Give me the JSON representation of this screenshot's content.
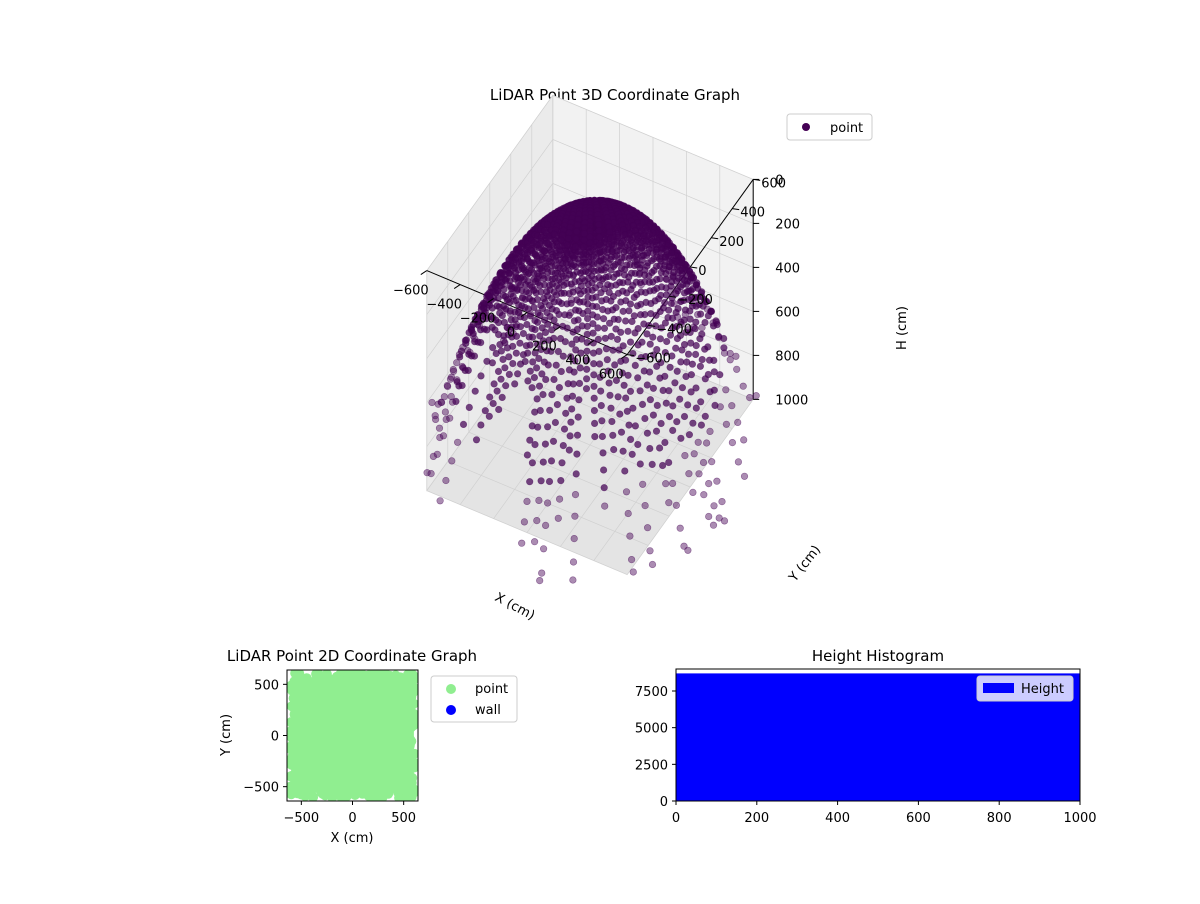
{
  "figure": {
    "colors": {
      "point3d": "#440154",
      "point2d": "#90ee90",
      "wall": "#0000ff",
      "histogram": "#0000ff"
    }
  },
  "chart_data": [
    {
      "type": "scatter",
      "projection": "3d",
      "title": "LiDAR Point 3D Coordinate Graph",
      "xlabel": "X (cm)",
      "ylabel": "Y (cm)",
      "zlabel": "H (cm)",
      "xlim": [
        -600,
        600
      ],
      "ylim": [
        -600,
        600
      ],
      "zlim": [
        0,
        1000
      ],
      "z_inverted": true,
      "x_ticks": [
        "−600",
        "−400",
        "−200",
        "0",
        "200",
        "400",
        "600"
      ],
      "y_ticks": [
        "−600",
        "−400",
        "−200",
        "0",
        "200",
        "400",
        "600"
      ],
      "z_ticks": [
        "0",
        "200",
        "400",
        "600",
        "800",
        "1000"
      ],
      "grid": true,
      "legend": {
        "placement": "top-right",
        "entries": [
          "point"
        ]
      },
      "series": [
        {
          "name": "point",
          "color": "#440154",
          "pattern": "radial rays of points from the origin; height (H) grows with horizontal distance; dense cluster near center",
          "ray_count": 90,
          "points_per_ray": 26,
          "r_max": 860,
          "h_max": 1000,
          "sample_points": [
            {
              "x": 0,
              "y": 0,
              "h": 0
            },
            {
              "x": 300,
              "y": 0,
              "h": 120
            },
            {
              "x": 600,
              "y": 0,
              "h": 500
            },
            {
              "x": 0,
              "y": 600,
              "h": 500
            },
            {
              "x": -600,
              "y": 0,
              "h": 500
            },
            {
              "x": 0,
              "y": -600,
              "h": 500
            },
            {
              "x": 600,
              "y": 600,
              "h": 1000
            }
          ]
        }
      ]
    },
    {
      "type": "scatter",
      "title": "LiDAR Point 2D Coordinate Graph",
      "xlabel": "X (cm)",
      "ylabel": "Y (cm)",
      "xlim": [
        -640,
        640
      ],
      "ylim": [
        -640,
        640
      ],
      "x_ticks": [
        -500,
        0,
        500
      ],
      "y_ticks": [
        -500,
        0,
        500
      ],
      "legend": {
        "placement": "outside-right",
        "entries": [
          "point",
          "wall"
        ]
      },
      "series": [
        {
          "name": "point",
          "color": "#90ee90",
          "coverage": "nearly fills [-600,600] x [-600,600]"
        },
        {
          "name": "wall",
          "color": "#0000ff",
          "values": []
        }
      ]
    },
    {
      "type": "bar",
      "title": "Height Histogram",
      "xlabel": "",
      "ylabel": "",
      "xlim": [
        0,
        1000
      ],
      "ylim": [
        0,
        9000
      ],
      "x_ticks": [
        0,
        200,
        400,
        600,
        800,
        1000
      ],
      "y_ticks": [
        0,
        2500,
        5000,
        7500
      ],
      "legend": {
        "placement": "top-right",
        "entries": [
          "Height"
        ]
      },
      "series": [
        {
          "name": "Height",
          "color": "#0000ff",
          "bins": [
            {
              "from": 0,
              "to": 1000,
              "count": 8700
            }
          ]
        }
      ]
    }
  ]
}
